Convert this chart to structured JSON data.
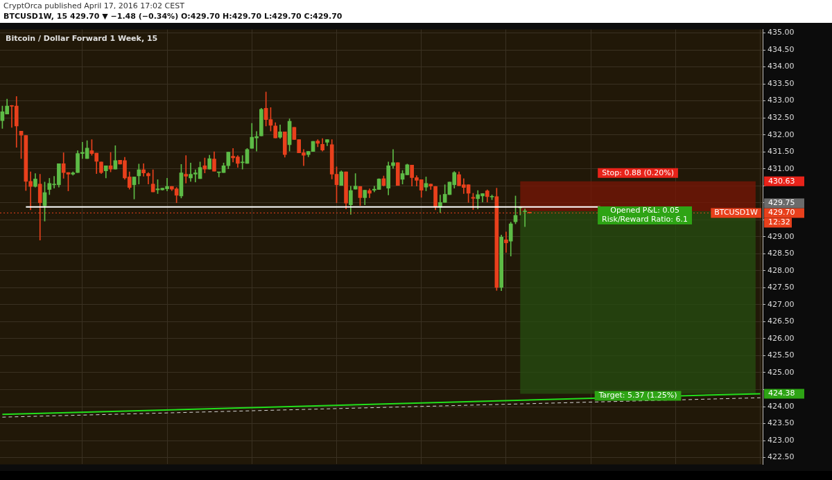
{
  "chart_data": {
    "type": "candlestick",
    "title": "Bitcoin / Dollar Forward 1 Week, 15",
    "subtitle": "CryptOrca published April 17, 2016 17:02 CEST",
    "categories": [
      null,
      null,
      null,
      null,
      null,
      null,
      null,
      null,
      null,
      null,
      null,
      null,
      null,
      null,
      null,
      null,
      null,
      null,
      null,
      null,
      null,
      null,
      null,
      null,
      null,
      null,
      null,
      null,
      null,
      null,
      null,
      null,
      null,
      null,
      null,
      null,
      null,
      null,
      null,
      null,
      null,
      null,
      null,
      null,
      null,
      null,
      null,
      null,
      null,
      null,
      null,
      null,
      null,
      null,
      null,
      null,
      null,
      null,
      null,
      null,
      null,
      null,
      null,
      null,
      null,
      null,
      null,
      null,
      null,
      null,
      null,
      null,
      null,
      null,
      null,
      null,
      null,
      null,
      null,
      null,
      null,
      null,
      null,
      null,
      null,
      null,
      null,
      null,
      null,
      null,
      null,
      null,
      null,
      null,
      null,
      null,
      null,
      null,
      null,
      null,
      null,
      null,
      null,
      null,
      null,
      null,
      null,
      null,
      null,
      null,
      null,
      null,
      null,
      null,
      null,
      null,
      null,
      null,
      null,
      null,
      null,
      null,
      null,
      null,
      null,
      null,
      null,
      null,
      null,
      null,
      null,
      null,
      null,
      null,
      null,
      null,
      null,
      null,
      null,
      null,
      null,
      null,
      null,
      null,
      null,
      null,
      null,
      null,
      null,
      null,
      null,
      null,
      null,
      null,
      null,
      null,
      null,
      null,
      null,
      null,
      null,
      null
    ],
    "ohlc": [
      [
        432.42,
        432.85,
        432.19,
        432.68
      ],
      [
        432.61,
        433.05,
        432.61,
        432.85
      ],
      [
        432.85,
        432.87,
        432.22,
        432.84
      ],
      [
        432.85,
        433.13,
        431.63,
        432.26
      ],
      [
        432.11,
        432.11,
        431.3,
        431.99
      ],
      [
        431.98,
        431.98,
        430.36,
        430.63
      ],
      [
        430.63,
        430.91,
        429.79,
        430.48
      ],
      [
        430.48,
        430.86,
        430.46,
        430.7
      ],
      [
        430.55,
        430.84,
        428.9,
        430.0
      ],
      [
        429.91,
        430.61,
        429.46,
        430.3
      ],
      [
        430.39,
        430.72,
        430.24,
        430.57
      ],
      [
        430.53,
        430.78,
        430.43,
        430.54
      ],
      [
        430.53,
        431.15,
        430.46,
        431.15
      ],
      [
        431.15,
        431.47,
        430.72,
        430.89
      ],
      [
        430.89,
        430.89,
        430.35,
        430.84
      ],
      [
        430.84,
        430.91,
        430.81,
        430.88
      ],
      [
        430.89,
        431.53,
        430.89,
        431.45
      ],
      [
        431.45,
        431.78,
        431.3,
        431.48
      ],
      [
        431.3,
        431.83,
        431.3,
        431.61
      ],
      [
        431.53,
        431.86,
        431.4,
        431.45
      ],
      [
        431.46,
        431.46,
        430.86,
        431.22
      ],
      [
        431.2,
        431.2,
        430.86,
        430.89
      ],
      [
        430.94,
        431.09,
        430.73,
        431.09
      ],
      [
        431.09,
        431.48,
        430.91,
        430.99
      ],
      [
        430.99,
        431.68,
        430.99,
        431.24
      ],
      [
        431.25,
        431.25,
        431.14,
        431.14
      ],
      [
        431.24,
        431.34,
        430.69,
        430.73
      ],
      [
        430.76,
        430.91,
        430.4,
        430.45
      ],
      [
        430.53,
        430.76,
        430.11,
        430.76
      ],
      [
        430.79,
        431.14,
        430.55,
        430.97
      ],
      [
        430.97,
        431.15,
        430.78,
        430.88
      ],
      [
        430.86,
        430.89,
        430.55,
        430.79
      ],
      [
        430.55,
        430.97,
        430.32,
        430.32
      ],
      [
        430.38,
        430.68,
        430.27,
        430.41
      ],
      [
        430.38,
        430.43,
        430.37,
        430.43
      ],
      [
        430.41,
        430.72,
        430.35,
        430.48
      ],
      [
        430.48,
        430.48,
        430.36,
        430.4
      ],
      [
        430.41,
        430.45,
        430.0,
        430.22
      ],
      [
        430.2,
        431.13,
        430.14,
        430.88
      ],
      [
        430.84,
        431.39,
        430.58,
        430.78
      ],
      [
        430.73,
        431.17,
        430.63,
        430.84
      ],
      [
        430.84,
        430.97,
        430.61,
        430.88
      ],
      [
        430.71,
        431.2,
        430.71,
        431.04
      ],
      [
        431.09,
        431.32,
        430.88,
        430.99
      ],
      [
        430.99,
        431.4,
        430.99,
        431.3
      ],
      [
        431.29,
        431.5,
        430.93,
        430.93
      ],
      [
        430.89,
        430.9,
        430.76,
        430.9
      ],
      [
        430.89,
        431.17,
        430.89,
        431.09
      ],
      [
        431.09,
        431.49,
        431.0,
        431.49
      ],
      [
        431.37,
        431.6,
        431.2,
        431.32
      ],
      [
        431.35,
        431.39,
        431.04,
        431.16
      ],
      [
        431.18,
        431.39,
        430.99,
        431.19
      ],
      [
        431.16,
        431.6,
        431.16,
        431.57
      ],
      [
        431.6,
        432.34,
        431.6,
        431.93
      ],
      [
        431.91,
        432.1,
        431.52,
        431.95
      ],
      [
        431.97,
        432.78,
        431.97,
        432.75
      ],
      [
        432.78,
        433.26,
        432.26,
        432.45
      ],
      [
        432.45,
        432.8,
        432.11,
        432.28
      ],
      [
        432.26,
        432.36,
        431.91,
        431.91
      ],
      [
        431.93,
        432.29,
        431.89,
        432.09
      ],
      [
        432.09,
        432.09,
        431.34,
        431.42
      ],
      [
        431.71,
        432.47,
        431.52,
        432.4
      ],
      [
        432.22,
        432.22,
        431.86,
        431.86
      ],
      [
        431.86,
        431.86,
        431.47,
        431.47
      ],
      [
        431.47,
        431.57,
        431.09,
        431.4
      ],
      [
        431.42,
        431.51,
        431.35,
        431.51
      ],
      [
        431.51,
        431.81,
        431.51,
        431.81
      ],
      [
        431.82,
        431.86,
        431.65,
        431.75
      ],
      [
        431.72,
        431.89,
        431.52,
        431.55
      ],
      [
        431.78,
        431.86,
        431.68,
        431.86
      ],
      [
        431.71,
        431.86,
        430.7,
        430.84
      ],
      [
        430.84,
        431.06,
        430.0,
        430.53
      ],
      [
        430.51,
        430.94,
        430.51,
        430.91
      ],
      [
        430.91,
        430.91,
        429.82,
        429.99
      ],
      [
        429.94,
        430.49,
        429.66,
        430.36
      ],
      [
        430.4,
        430.86,
        430.4,
        430.49
      ],
      [
        430.48,
        430.48,
        429.92,
        430.15
      ],
      [
        430.15,
        430.37,
        429.94,
        430.37
      ],
      [
        430.36,
        430.41,
        430.15,
        430.28
      ],
      [
        430.37,
        430.49,
        430.32,
        430.4
      ],
      [
        430.39,
        430.71,
        430.39,
        430.7
      ],
      [
        430.71,
        430.79,
        430.49,
        430.51
      ],
      [
        430.43,
        431.2,
        430.23,
        431.09
      ],
      [
        431.09,
        431.57,
        431.01,
        431.18
      ],
      [
        431.18,
        431.18,
        430.51,
        430.51
      ],
      [
        430.69,
        430.95,
        430.55,
        430.86
      ],
      [
        430.82,
        431.14,
        430.82,
        431.12
      ],
      [
        431.11,
        431.11,
        430.49,
        430.74
      ],
      [
        430.74,
        430.8,
        430.49,
        430.66
      ],
      [
        430.68,
        430.68,
        430.16,
        430.37
      ],
      [
        430.46,
        430.76,
        430.35,
        430.57
      ],
      [
        430.55,
        430.55,
        430.39,
        430.49
      ],
      [
        430.48,
        430.48,
        429.79,
        429.87
      ],
      [
        429.87,
        430.23,
        429.71,
        430.01
      ],
      [
        430.01,
        430.53,
        430.01,
        430.25
      ],
      [
        430.24,
        430.61,
        430.24,
        430.61
      ],
      [
        430.53,
        430.92,
        430.43,
        430.89
      ],
      [
        430.83,
        430.91,
        430.5,
        430.5
      ],
      [
        430.53,
        430.71,
        430.27,
        430.45
      ],
      [
        430.53,
        430.53,
        430.01,
        430.28
      ],
      [
        430.16,
        430.28,
        429.8,
        430.13
      ],
      [
        430.12,
        430.36,
        429.82,
        430.24
      ],
      [
        430.2,
        430.27,
        430.02,
        430.27
      ],
      [
        430.35,
        430.38,
        430.02,
        430.18
      ],
      [
        430.17,
        430.23,
        430.09,
        430.18
      ],
      [
        430.18,
        430.43,
        427.42,
        427.51
      ],
      [
        427.51,
        429.05,
        427.41,
        428.99
      ],
      [
        428.91,
        429.14,
        428.54,
        428.82
      ],
      [
        428.87,
        429.43,
        428.43,
        429.38
      ],
      [
        429.44,
        430.2,
        429.38,
        429.63
      ],
      [
        429.85,
        429.89,
        429.64,
        429.86
      ],
      [
        429.74,
        429.82,
        429.3,
        429.76
      ],
      [
        429.72,
        429.72,
        429.69,
        429.7
      ],
      null,
      null,
      null,
      null,
      null,
      null,
      null,
      null,
      null,
      null,
      null,
      null,
      null,
      null,
      null,
      null,
      null,
      null,
      null,
      null,
      null,
      null,
      null,
      null,
      null,
      null,
      null,
      null,
      null,
      null,
      null,
      null,
      null,
      null,
      null,
      null,
      null,
      null,
      null,
      null,
      null,
      null,
      null,
      null,
      null,
      null,
      null,
      null,
      null
    ],
    "series": [
      {
        "type": "line",
        "color": "#22e01c",
        "values": [
          423.77,
          null,
          null,
          null,
          null,
          null,
          null,
          null,
          null,
          null,
          null,
          null,
          null,
          null,
          null,
          null,
          null,
          null,
          null,
          null,
          null,
          null,
          null,
          null,
          null,
          null,
          null,
          null,
          null,
          null,
          null,
          null,
          null,
          null,
          null,
          null,
          null,
          null,
          null,
          null,
          null,
          null,
          null,
          null,
          null,
          null,
          null,
          null,
          null,
          null,
          null,
          null,
          null,
          null,
          null,
          null,
          null,
          null,
          null,
          null,
          null,
          null,
          null,
          null,
          null,
          null,
          null,
          null,
          null,
          null,
          null,
          null,
          null,
          null,
          null,
          null,
          null,
          null,
          null,
          null,
          null,
          null,
          null,
          null,
          null,
          null,
          null,
          null,
          null,
          null,
          null,
          null,
          null,
          null,
          null,
          null,
          null,
          null,
          null,
          null,
          null,
          null,
          null,
          null,
          null,
          null,
          null,
          null,
          null,
          null,
          null,
          null,
          null,
          null,
          null,
          null,
          null,
          null,
          null,
          null,
          null,
          null,
          null,
          null,
          null,
          null,
          null,
          null,
          null,
          null,
          null,
          null,
          null,
          null,
          null,
          null,
          null,
          null,
          null,
          null,
          null,
          null,
          null,
          null,
          null,
          null,
          null,
          null,
          null,
          null,
          null,
          null,
          null,
          null,
          null,
          null,
          null,
          null,
          null,
          null,
          null,
          424.38
        ]
      },
      {
        "type": "line",
        "color": "#d8d8d8",
        "line_style": "dashed",
        "values": [
          423.69,
          null,
          null,
          null,
          null,
          null,
          null,
          null,
          null,
          null,
          null,
          null,
          null,
          null,
          null,
          null,
          null,
          null,
          null,
          null,
          null,
          null,
          null,
          null,
          null,
          null,
          null,
          null,
          null,
          null,
          null,
          null,
          null,
          null,
          null,
          null,
          null,
          null,
          null,
          null,
          null,
          null,
          null,
          null,
          null,
          null,
          null,
          null,
          null,
          null,
          null,
          null,
          null,
          null,
          null,
          null,
          null,
          null,
          null,
          null,
          null,
          null,
          null,
          null,
          null,
          null,
          null,
          null,
          null,
          null,
          null,
          null,
          null,
          null,
          null,
          null,
          null,
          null,
          null,
          null,
          null,
          null,
          null,
          null,
          null,
          null,
          null,
          null,
          null,
          null,
          null,
          null,
          null,
          null,
          null,
          null,
          null,
          null,
          null,
          null,
          null,
          null,
          null,
          null,
          null,
          null,
          null,
          null,
          null,
          null,
          null,
          null,
          null,
          null,
          null,
          null,
          null,
          null,
          null,
          null,
          null,
          null,
          null,
          null,
          null,
          null,
          null,
          null,
          null,
          null,
          null,
          null,
          null,
          null,
          null,
          null,
          null,
          null,
          null,
          null,
          null,
          null,
          null,
          null,
          null,
          null,
          null,
          null,
          null,
          null,
          null,
          null,
          null,
          null,
          null,
          null,
          null,
          null,
          null,
          null,
          null,
          424.26
        ]
      },
      {
        "type": "line",
        "color": "#ffffff",
        "values": [
          null,
          null,
          null,
          null,
          null,
          429.88,
          null,
          null,
          null,
          null,
          null,
          null,
          null,
          null,
          null,
          null,
          null,
          null,
          null,
          null,
          null,
          null,
          null,
          null,
          null,
          null,
          null,
          null,
          null,
          null,
          null,
          null,
          null,
          null,
          null,
          null,
          null,
          null,
          null,
          null,
          null,
          null,
          null,
          null,
          null,
          null,
          null,
          null,
          null,
          null,
          null,
          null,
          null,
          null,
          null,
          null,
          null,
          null,
          null,
          null,
          null,
          null,
          null,
          null,
          null,
          null,
          null,
          null,
          null,
          null,
          null,
          null,
          null,
          null,
          null,
          null,
          null,
          null,
          null,
          null,
          null,
          null,
          null,
          null,
          null,
          null,
          null,
          null,
          null,
          null,
          null,
          null,
          null,
          null,
          null,
          null,
          null,
          null,
          null,
          null,
          null,
          null,
          null,
          null,
          null,
          null,
          null,
          null,
          null,
          null,
          null,
          null,
          null,
          null,
          null,
          null,
          null,
          null,
          null,
          null,
          null,
          null,
          null,
          null,
          null,
          null,
          null,
          429.88,
          null,
          null,
          null,
          null,
          null,
          null,
          null,
          null,
          null,
          null,
          null,
          null,
          null,
          null,
          null,
          null,
          null,
          null,
          null,
          null,
          null,
          null,
          null,
          null,
          null,
          null,
          null,
          null,
          null,
          null,
          null,
          null,
          null,
          null
        ]
      }
    ],
    "ylim": [
      422.3,
      435.1
    ],
    "yticks": [
      {
        "value": 422.5,
        "label": "422.50"
      },
      {
        "value": 423,
        "label": "423.00"
      },
      {
        "value": 423.5,
        "label": "423.50"
      },
      {
        "value": 424,
        "label": "424.00"
      },
      {
        "value": 424.5,
        "label": null
      },
      {
        "value": 425,
        "label": "425.00"
      },
      {
        "value": 425.5,
        "label": "425.50"
      },
      {
        "value": 426,
        "label": "426.00"
      },
      {
        "value": 426.5,
        "label": "426.50"
      },
      {
        "value": 427,
        "label": "427.00"
      },
      {
        "value": 427.5,
        "label": "427.50"
      },
      {
        "value": 428,
        "label": "428.00"
      },
      {
        "value": 428.5,
        "label": "428.50"
      },
      {
        "value": 429,
        "label": "429.00"
      },
      {
        "value": 429.5,
        "label": null
      },
      {
        "value": 430,
        "label": null
      },
      {
        "value": 430.5,
        "label": null
      },
      {
        "value": 431,
        "label": "431.00"
      },
      {
        "value": 431.5,
        "label": "431.50"
      },
      {
        "value": 432,
        "label": "432.00"
      },
      {
        "value": 432.5,
        "label": "432.50"
      },
      {
        "value": 433,
        "label": "433.00"
      },
      {
        "value": 433.5,
        "label": "433.50"
      },
      {
        "value": 434,
        "label": "434.00"
      },
      {
        "value": 434.5,
        "label": "434.50"
      },
      {
        "value": 435,
        "label": "435.00"
      }
    ],
    "tick_labels": "y",
    "grid": true,
    "legend": false,
    "bands": [
      {
        "axis": "y",
        "from": 429.75,
        "to": 430.63,
        "label": "Stop: 0.88 (0.20%)",
        "color": "#7a1606"
      },
      {
        "axis": "y",
        "from": 424.38,
        "to": 429.75,
        "label": "Target: 5.37 (1.25%)",
        "color": "#264d10"
      }
    ],
    "ref_lines": [
      {
        "axis": "y",
        "value": 429.7,
        "label": "BTCUSD1W",
        "color": "#e8401c",
        "line_style": "dotted"
      }
    ],
    "annotations": [
      "BTCUSD1W, 15 429.70 ▼ −1.48 (−0.34%) O:429.70 H:429.70 L:429.70 C:429.70",
      "Opened P&L: 0.05",
      "Risk/Reward Ratio: 6.1",
      "12:32",
      "430.63",
      "429.75",
      "429.70",
      "424.38"
    ]
  }
}
